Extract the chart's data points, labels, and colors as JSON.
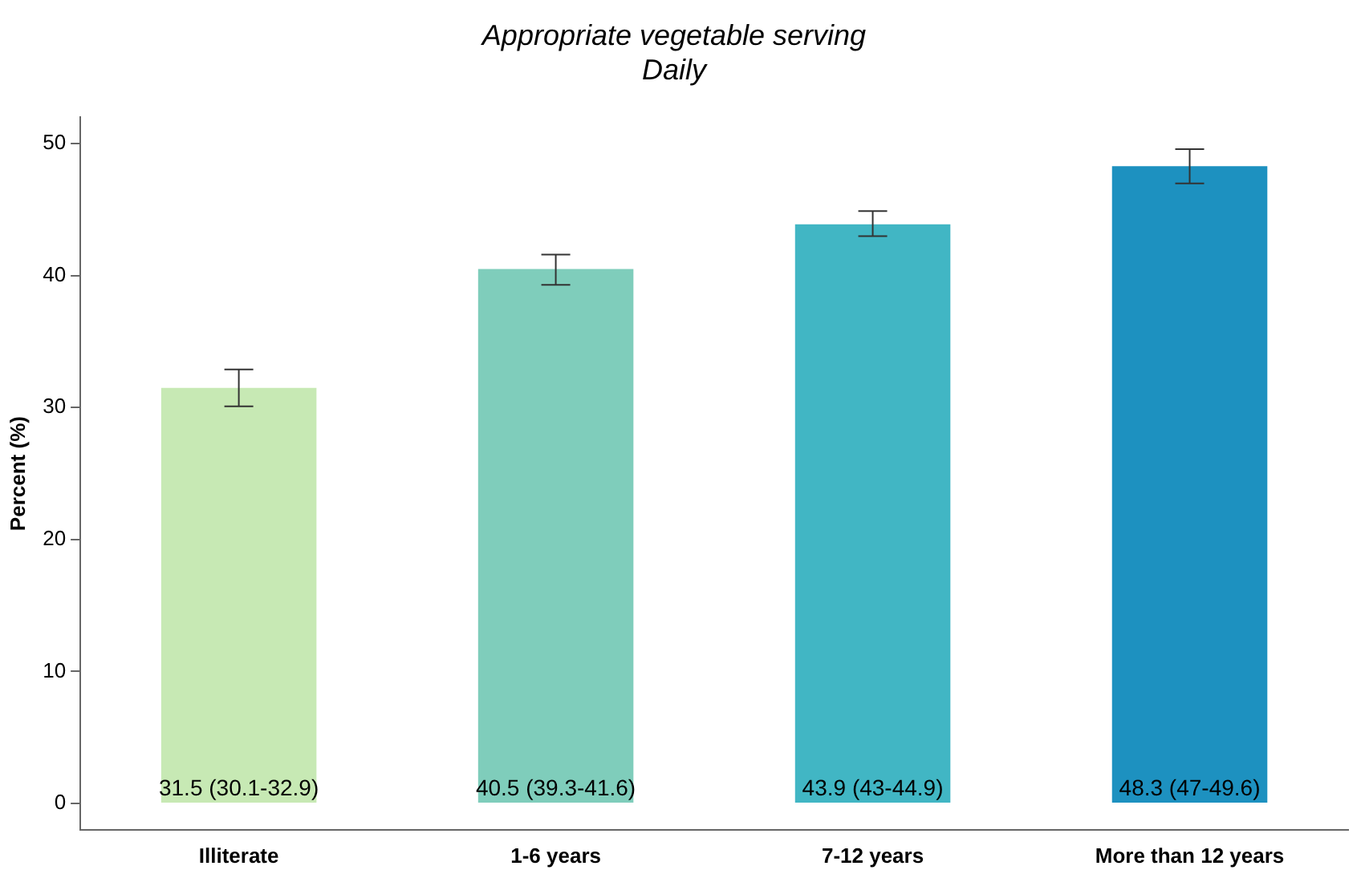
{
  "chart_data": {
    "type": "bar",
    "title": "Appropriate vegetable serving",
    "subtitle": "Daily",
    "ylabel": "Percent (%)",
    "categories": [
      "Illiterate",
      "1-6 years",
      "7-12 years",
      "More than 12 years"
    ],
    "values": [
      31.5,
      40.5,
      43.9,
      48.3
    ],
    "colors": [
      "#c7e9b4",
      "#7fcdbb",
      "#41b6c4",
      "#1d91c0"
    ],
    "errors": [
      [
        30.1,
        32.9
      ],
      [
        39.3,
        41.6
      ],
      [
        43,
        44.9
      ],
      [
        47,
        49.6
      ]
    ],
    "value_labels": [
      "31.5 (30.1-32.9)",
      "40.5 (39.3-41.6)",
      "43.9 (43-44.9)",
      "48.3 (47-49.6)"
    ],
    "ylim": [
      -2,
      52
    ],
    "yticks": [
      0,
      10,
      20,
      30,
      40,
      50
    ],
    "grid": false,
    "legend": false
  }
}
